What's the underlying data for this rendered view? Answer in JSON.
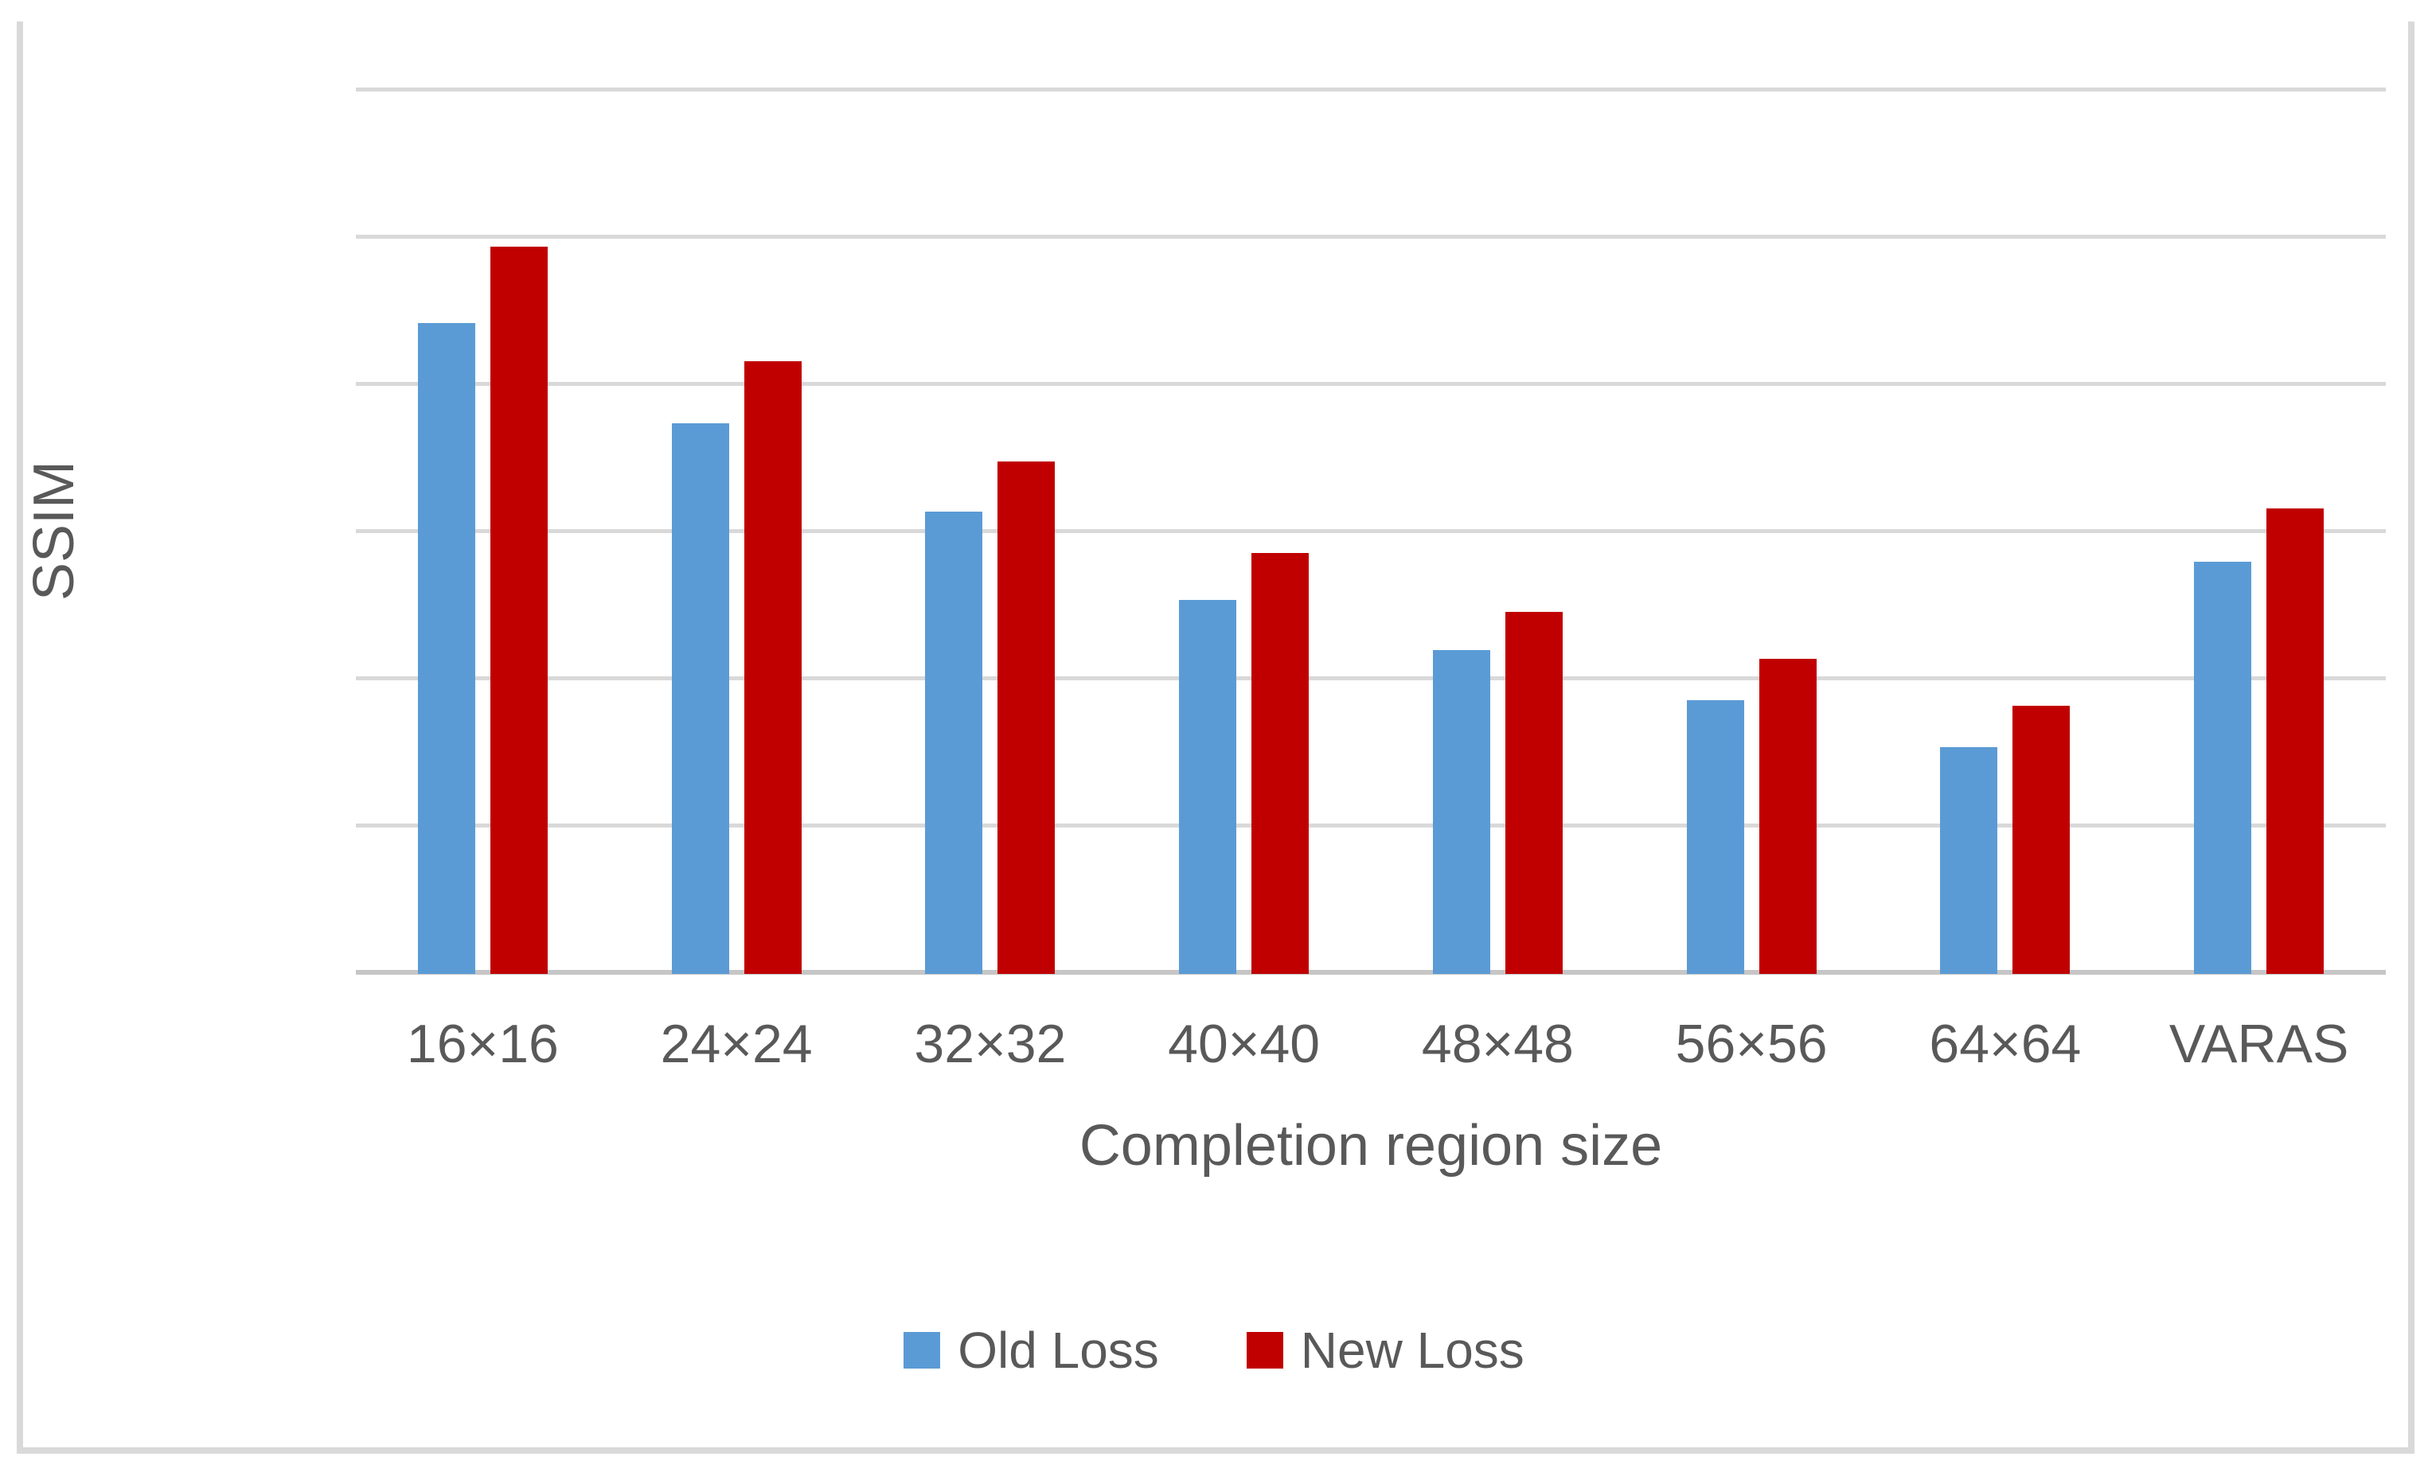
{
  "chart_data": {
    "type": "bar",
    "title": "",
    "xlabel": "Completion region size",
    "ylabel": "SSIM",
    "categories": [
      "16×16",
      "24×24",
      "32×32",
      "40×40",
      "48×48",
      "56×56",
      "64×64",
      "VARAS"
    ],
    "series": [
      {
        "name": "Old Loss",
        "color": "#5B9BD5",
        "values": [
          0.621,
          0.587,
          0.557,
          0.527,
          0.51,
          0.493,
          0.477,
          0.54
        ]
      },
      {
        "name": "New Loss",
        "color": "#C00000",
        "values": [
          0.647,
          0.608,
          0.574,
          0.543,
          0.523,
          0.507,
          0.491,
          0.558
        ]
      }
    ],
    "ylim": [
      0.4,
      0.7
    ],
    "ytick_step": 0.05,
    "yticks": [
      "0.700",
      "0.650",
      "0.600",
      "0.550",
      "0.500",
      "0.450",
      "0.400"
    ],
    "grid": true,
    "legend_position": "bottom",
    "colors": {
      "gridline": "#D9D9D9",
      "axis_line": "#C6C6C6",
      "text": "#595959",
      "frame_border": "#D9D9D9",
      "background": "#FFFFFF"
    }
  }
}
